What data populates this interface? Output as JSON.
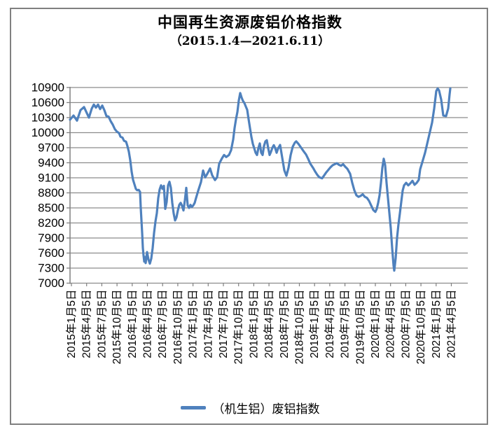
{
  "figure": {
    "title": "中国再生资源废铝价格指数",
    "subtitle": "（2015.1.4—2021.6.11）",
    "legend_label": "（机生铝）废铝指数"
  },
  "colors": {
    "line": "#4F81BD",
    "grid": "#8C8C8C",
    "axis": "#808080",
    "frame": "#808080",
    "text": "#000000",
    "background": "#FFFFFF"
  },
  "chart_data": {
    "type": "line",
    "title": "中国再生资源废铝价格指数",
    "subtitle": "（2015.1.4—2021.6.11）",
    "grid": "horizontal",
    "legend_position": "bottom",
    "y_axis": {
      "min": 7000,
      "max": 10900,
      "step": 300,
      "tick_values": [
        7000,
        7300,
        7600,
        7900,
        8200,
        8500,
        8800,
        9100,
        9400,
        9700,
        10000,
        10300,
        10600,
        10900
      ],
      "tick_labels": [
        "7000",
        "7300",
        "7600",
        "7900",
        "8200",
        "8500",
        "8800",
        "9100",
        "9400",
        "9700",
        "10000",
        "10300",
        "10600",
        "10900"
      ]
    },
    "t_axis": {
      "description": "weekly index-date axis: t=0 is 2015-01-04, t=543 is 2021-06-11",
      "t_min": 0,
      "t_max": 543,
      "tick_labels": [
        "2015年1月5日",
        "2015年4月5日",
        "2015年7月5日",
        "2015年10月5日",
        "2016年1月5日",
        "2016年4月5日",
        "2016年7月5日",
        "2016年10月5日",
        "2017年1月5日",
        "2017年4月5日",
        "2017年7月5日",
        "2017年10月5日",
        "2018年1月5日",
        "2018年4月5日",
        "2018年7月5日",
        "2018年10月5日",
        "2019年1月5日",
        "2019年4月5日",
        "2019年7月5日",
        "2019年10月5日",
        "2020年1月5日",
        "2020年4月5日",
        "2020年7月5日",
        "2020年10月5日",
        "2021年1月5日",
        "2021年4月5日"
      ]
    },
    "series": [
      {
        "name": "（机生铝）废铝指数",
        "color": "#4F81BD",
        "points": [
          [
            0,
            10260
          ],
          [
            5,
            10340
          ],
          [
            10,
            10240
          ],
          [
            15,
            10450
          ],
          [
            20,
            10510
          ],
          [
            24,
            10390
          ],
          [
            27,
            10300
          ],
          [
            31,
            10480
          ],
          [
            34,
            10560
          ],
          [
            37,
            10500
          ],
          [
            40,
            10560
          ],
          [
            43,
            10470
          ],
          [
            46,
            10540
          ],
          [
            49,
            10450
          ],
          [
            52,
            10330
          ],
          [
            55,
            10320
          ],
          [
            58,
            10230
          ],
          [
            61,
            10160
          ],
          [
            64,
            10070
          ],
          [
            67,
            10020
          ],
          [
            70,
            9990
          ],
          [
            72,
            9920
          ],
          [
            75,
            9900
          ],
          [
            77,
            9840
          ],
          [
            80,
            9820
          ],
          [
            82,
            9730
          ],
          [
            84,
            9620
          ],
          [
            86,
            9450
          ],
          [
            88,
            9220
          ],
          [
            90,
            9060
          ],
          [
            92,
            8970
          ],
          [
            94,
            8880
          ],
          [
            96,
            8850
          ],
          [
            98,
            8860
          ],
          [
            100,
            8820
          ],
          [
            101,
            8500
          ],
          [
            103,
            8000
          ],
          [
            104,
            7700
          ],
          [
            105,
            7550
          ],
          [
            106,
            7430
          ],
          [
            107,
            7520
          ],
          [
            108,
            7400
          ],
          [
            110,
            7620
          ],
          [
            112,
            7470
          ],
          [
            114,
            7390
          ],
          [
            116,
            7490
          ],
          [
            118,
            7700
          ],
          [
            120,
            8000
          ],
          [
            122,
            8230
          ],
          [
            124,
            8400
          ],
          [
            126,
            8700
          ],
          [
            128,
            8870
          ],
          [
            130,
            8950
          ],
          [
            132,
            8880
          ],
          [
            134,
            8940
          ],
          [
            136,
            8480
          ],
          [
            138,
            8620
          ],
          [
            140,
            8950
          ],
          [
            142,
            9020
          ],
          [
            144,
            8900
          ],
          [
            146,
            8600
          ],
          [
            148,
            8390
          ],
          [
            150,
            8250
          ],
          [
            152,
            8310
          ],
          [
            154,
            8450
          ],
          [
            156,
            8560
          ],
          [
            158,
            8600
          ],
          [
            160,
            8540
          ],
          [
            162,
            8450
          ],
          [
            164,
            8650
          ],
          [
            166,
            8900
          ],
          [
            168,
            8550
          ],
          [
            170,
            8500
          ],
          [
            172,
            8560
          ],
          [
            174,
            8520
          ],
          [
            176,
            8550
          ],
          [
            178,
            8600
          ],
          [
            180,
            8700
          ],
          [
            183,
            8840
          ],
          [
            187,
            9015
          ],
          [
            190,
            9245
          ],
          [
            193,
            9110
          ],
          [
            196,
            9180
          ],
          [
            200,
            9285
          ],
          [
            203,
            9150
          ],
          [
            207,
            9055
          ],
          [
            210,
            9110
          ],
          [
            213,
            9380
          ],
          [
            217,
            9490
          ],
          [
            220,
            9555
          ],
          [
            223,
            9515
          ],
          [
            227,
            9555
          ],
          [
            230,
            9650
          ],
          [
            233,
            9865
          ],
          [
            235,
            10095
          ],
          [
            237,
            10270
          ],
          [
            239,
            10410
          ],
          [
            241,
            10640
          ],
          [
            243,
            10790
          ],
          [
            245,
            10700
          ],
          [
            247,
            10630
          ],
          [
            249,
            10590
          ],
          [
            251,
            10520
          ],
          [
            253,
            10455
          ],
          [
            255,
            10270
          ],
          [
            257,
            10090
          ],
          [
            259,
            9915
          ],
          [
            261,
            9780
          ],
          [
            263,
            9690
          ],
          [
            265,
            9600
          ],
          [
            267,
            9555
          ],
          [
            269,
            9690
          ],
          [
            271,
            9785
          ],
          [
            273,
            9600
          ],
          [
            275,
            9555
          ],
          [
            277,
            9735
          ],
          [
            279,
            9825
          ],
          [
            281,
            9850
          ],
          [
            283,
            9690
          ],
          [
            285,
            9555
          ],
          [
            287,
            9620
          ],
          [
            289,
            9700
          ],
          [
            291,
            9750
          ],
          [
            293,
            9690
          ],
          [
            295,
            9600
          ],
          [
            297,
            9680
          ],
          [
            300,
            9755
          ],
          [
            303,
            9500
          ],
          [
            306,
            9250
          ],
          [
            309,
            9140
          ],
          [
            312,
            9300
          ],
          [
            315,
            9550
          ],
          [
            318,
            9720
          ],
          [
            321,
            9800
          ],
          [
            323,
            9825
          ],
          [
            326,
            9780
          ],
          [
            330,
            9700
          ],
          [
            334,
            9620
          ],
          [
            337,
            9565
          ],
          [
            340,
            9480
          ],
          [
            343,
            9385
          ],
          [
            347,
            9300
          ],
          [
            350,
            9225
          ],
          [
            353,
            9160
          ],
          [
            356,
            9110
          ],
          [
            360,
            9090
          ],
          [
            363,
            9150
          ],
          [
            366,
            9210
          ],
          [
            369,
            9260
          ],
          [
            372,
            9310
          ],
          [
            375,
            9350
          ],
          [
            378,
            9370
          ],
          [
            381,
            9390
          ],
          [
            384,
            9360
          ],
          [
            387,
            9340
          ],
          [
            390,
            9370
          ],
          [
            393,
            9320
          ],
          [
            396,
            9280
          ],
          [
            400,
            9180
          ],
          [
            403,
            9000
          ],
          [
            406,
            8850
          ],
          [
            409,
            8750
          ],
          [
            412,
            8720
          ],
          [
            415,
            8740
          ],
          [
            418,
            8770
          ],
          [
            421,
            8720
          ],
          [
            424,
            8700
          ],
          [
            427,
            8640
          ],
          [
            430,
            8550
          ],
          [
            433,
            8460
          ],
          [
            436,
            8420
          ],
          [
            438,
            8480
          ],
          [
            440,
            8600
          ],
          [
            442,
            8750
          ],
          [
            444,
            9000
          ],
          [
            446,
            9300
          ],
          [
            448,
            9480
          ],
          [
            450,
            9350
          ],
          [
            452,
            9000
          ],
          [
            454,
            8700
          ],
          [
            456,
            8400
          ],
          [
            458,
            8100
          ],
          [
            460,
            7700
          ],
          [
            462,
            7350
          ],
          [
            463,
            7250
          ],
          [
            465,
            7500
          ],
          [
            467,
            7905
          ],
          [
            469,
            8170
          ],
          [
            471,
            8390
          ],
          [
            473,
            8620
          ],
          [
            475,
            8845
          ],
          [
            477,
            8950
          ],
          [
            480,
            9000
          ],
          [
            483,
            8950
          ],
          [
            486,
            8990
          ],
          [
            489,
            9040
          ],
          [
            492,
            8960
          ],
          [
            495,
            9000
          ],
          [
            498,
            9060
          ],
          [
            500,
            9270
          ],
          [
            503,
            9410
          ],
          [
            507,
            9600
          ],
          [
            510,
            9780
          ],
          [
            513,
            9960
          ],
          [
            517,
            10200
          ],
          [
            520,
            10480
          ],
          [
            523,
            10830
          ],
          [
            525,
            10880
          ],
          [
            527,
            10840
          ],
          [
            530,
            10660
          ],
          [
            533,
            10340
          ],
          [
            537,
            10330
          ],
          [
            540,
            10480
          ],
          [
            542,
            10760
          ],
          [
            543,
            10880
          ]
        ]
      }
    ]
  }
}
